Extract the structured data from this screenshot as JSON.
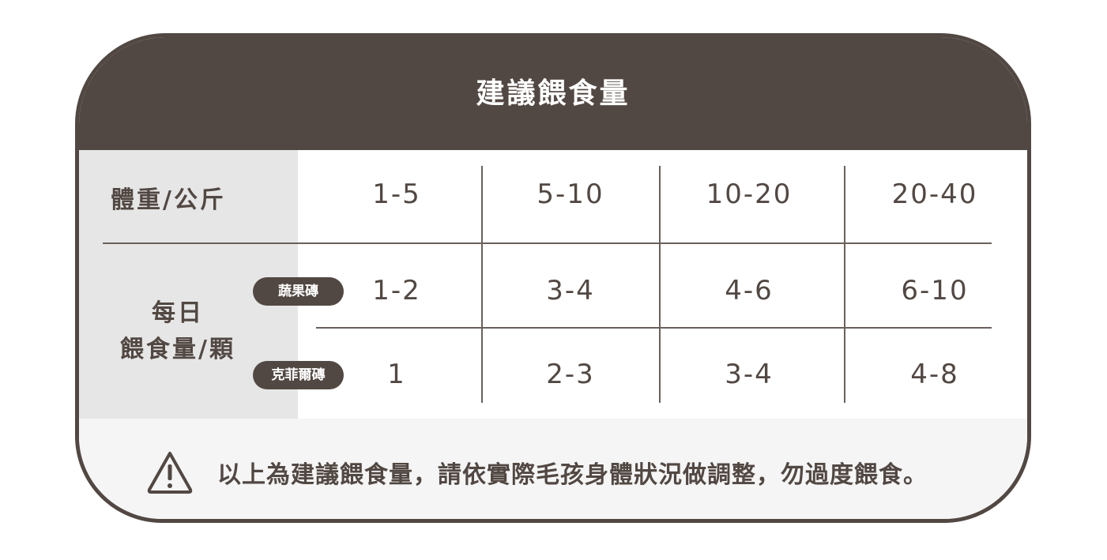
{
  "title": "建議餵食量",
  "row_header_weight": "體重/公斤",
  "row_header_daily": [
    "每日",
    "餵食量/顆"
  ],
  "weights": [
    "1-5",
    "5-10",
    "10-20",
    "20-40"
  ],
  "rows": [
    {
      "label": "蔬果磚",
      "values": [
        "1-2",
        "3-4",
        "4-6",
        "6-10"
      ]
    },
    {
      "label": "克菲爾磚",
      "values": [
        "1",
        "2-3",
        "3-4",
        "4-8"
      ]
    }
  ],
  "notice": {
    "icon": "warning-icon",
    "text": "以上為建議餵食量，請依實際毛孩身體狀況做調整，勿過度餵食。"
  },
  "colors": {
    "primary": "#524843",
    "left_column": "#e6e6e6",
    "footer": "#f5f5f5"
  }
}
